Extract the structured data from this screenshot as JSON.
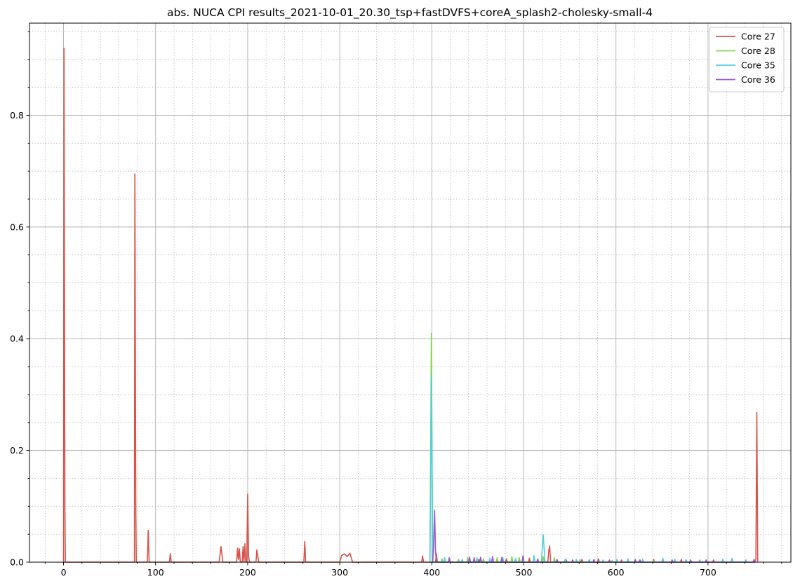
{
  "chart_data": {
    "type": "line",
    "title": "abs. NUCA CPI results_2021-10-01_20.30_tsp+fastDVFS+coreA_splash2-cholesky-small-4",
    "xlabel": "",
    "ylabel": "",
    "xlim": [
      -37,
      790
    ],
    "ylim": [
      0,
      0.965
    ],
    "x_major_ticks": [
      0,
      100,
      200,
      300,
      400,
      500,
      600,
      700
    ],
    "x_minor_step": 20,
    "y_major_ticks": [
      0.0,
      0.2,
      0.4,
      0.6,
      0.8
    ],
    "y_tick_labels": [
      "0.0",
      "0.2",
      "0.4",
      "0.6",
      "0.8"
    ],
    "y_minor_step": 0.05,
    "grid": true,
    "legend_position": "top-right",
    "series": [
      {
        "name": "Core 27",
        "color": "#d9534a",
        "points": [
          [
            0,
            0.0
          ],
          [
            0.5,
            0.92
          ],
          [
            1.5,
            0.1
          ],
          [
            2,
            0.0
          ],
          [
            77,
            0.0
          ],
          [
            77.5,
            0.695
          ],
          [
            78.5,
            0.1
          ],
          [
            79,
            0.0
          ],
          [
            91,
            0.0
          ],
          [
            92,
            0.057
          ],
          [
            93,
            0.0
          ],
          [
            115,
            0.0
          ],
          [
            116,
            0.015
          ],
          [
            117,
            0.0
          ],
          [
            169,
            0.0
          ],
          [
            171,
            0.028
          ],
          [
            173,
            0.0
          ],
          [
            188,
            0.0
          ],
          [
            189,
            0.025
          ],
          [
            190,
            0.005
          ],
          [
            191,
            0.024
          ],
          [
            192,
            0.0
          ],
          [
            194,
            0.0
          ],
          [
            195,
            0.028
          ],
          [
            196,
            0.0
          ],
          [
            197,
            0.033
          ],
          [
            198,
            0.0
          ],
          [
            199,
            0.0
          ],
          [
            200,
            0.122
          ],
          [
            201,
            0.01
          ],
          [
            202,
            0.0
          ],
          [
            209,
            0.0
          ],
          [
            210,
            0.022
          ],
          [
            212,
            0.0
          ],
          [
            261,
            0.0
          ],
          [
            262,
            0.037
          ],
          [
            263,
            0.0
          ],
          [
            300,
            0.0
          ],
          [
            302,
            0.012
          ],
          [
            305,
            0.015
          ],
          [
            308,
            0.01
          ],
          [
            311,
            0.016
          ],
          [
            314,
            0.0
          ],
          [
            389,
            0.0
          ],
          [
            390,
            0.011
          ],
          [
            391,
            0.0
          ],
          [
            404,
            0.0
          ],
          [
            405,
            0.015
          ],
          [
            406,
            0.0
          ],
          [
            418,
            0.0
          ],
          [
            419,
            0.004
          ],
          [
            420,
            0.0
          ],
          [
            450,
            0.0
          ],
          [
            451,
            0.005
          ],
          [
            452,
            0.0
          ],
          [
            480,
            0.0
          ],
          [
            481,
            0.006
          ],
          [
            482,
            0.0
          ],
          [
            505,
            0.0
          ],
          [
            506,
            0.007
          ],
          [
            507,
            0.0
          ],
          [
            526,
            0.0
          ],
          [
            527,
            0.02
          ],
          [
            528,
            0.029
          ],
          [
            529,
            0.0
          ],
          [
            545,
            0.0
          ],
          [
            546,
            0.004
          ],
          [
            547,
            0.0
          ],
          [
            562,
            0.0
          ],
          [
            563,
            0.005
          ],
          [
            564,
            0.0
          ],
          [
            580,
            0.0
          ],
          [
            581,
            0.006
          ],
          [
            582,
            0.0
          ],
          [
            605,
            0.0
          ],
          [
            606,
            0.004
          ],
          [
            607,
            0.0
          ],
          [
            640,
            0.0
          ],
          [
            641,
            0.005
          ],
          [
            642,
            0.0
          ],
          [
            670,
            0.0
          ],
          [
            671,
            0.005
          ],
          [
            672,
            0.0
          ],
          [
            705,
            0.0
          ],
          [
            706,
            0.004
          ],
          [
            707,
            0.0
          ],
          [
            751,
            0.0
          ],
          [
            752,
            0.005
          ],
          [
            753,
            0.268
          ],
          [
            754,
            0.0
          ]
        ]
      },
      {
        "name": "Core 28",
        "color": "#86d64a",
        "points": [
          [
            398,
            0.0
          ],
          [
            399.5,
            0.41
          ],
          [
            401,
            0.0
          ],
          [
            410,
            0.0
          ],
          [
            411,
            0.006
          ],
          [
            412,
            0.0
          ],
          [
            428,
            0.0
          ],
          [
            429,
            0.005
          ],
          [
            430,
            0.0
          ],
          [
            438,
            0.0
          ],
          [
            439,
            0.008
          ],
          [
            440,
            0.0
          ],
          [
            455,
            0.0
          ],
          [
            456,
            0.006
          ],
          [
            457,
            0.0
          ],
          [
            470,
            0.0
          ],
          [
            471,
            0.008
          ],
          [
            472,
            0.0
          ],
          [
            486,
            0.0
          ],
          [
            487,
            0.01
          ],
          [
            488,
            0.0
          ],
          [
            494,
            0.0
          ],
          [
            495,
            0.008
          ],
          [
            496,
            0.0
          ],
          [
            520,
            0.0
          ],
          [
            521,
            0.01
          ],
          [
            522,
            0.0
          ],
          [
            532,
            0.0
          ],
          [
            533,
            0.008
          ],
          [
            534,
            0.0
          ],
          [
            560,
            0.0
          ],
          [
            561,
            0.004
          ],
          [
            562,
            0.0
          ],
          [
            595,
            0.0
          ],
          [
            596,
            0.003
          ],
          [
            597,
            0.0
          ],
          [
            640,
            0.0
          ],
          [
            641,
            0.003
          ],
          [
            642,
            0.0
          ]
        ]
      },
      {
        "name": "Core 35",
        "color": "#4fd0dc",
        "points": [
          [
            398,
            0.0
          ],
          [
            399.5,
            0.335
          ],
          [
            401,
            0.0
          ],
          [
            413,
            0.0
          ],
          [
            414,
            0.008
          ],
          [
            415,
            0.0
          ],
          [
            432,
            0.0
          ],
          [
            433,
            0.005
          ],
          [
            434,
            0.0
          ],
          [
            448,
            0.0
          ],
          [
            449,
            0.008
          ],
          [
            450,
            0.0
          ],
          [
            462,
            0.0
          ],
          [
            463,
            0.007
          ],
          [
            464,
            0.0
          ],
          [
            476,
            0.0
          ],
          [
            477,
            0.009
          ],
          [
            478,
            0.0
          ],
          [
            490,
            0.0
          ],
          [
            491,
            0.007
          ],
          [
            492,
            0.0
          ],
          [
            510,
            0.0
          ],
          [
            511,
            0.012
          ],
          [
            512,
            0.0
          ],
          [
            519,
            0.0
          ],
          [
            521,
            0.049
          ],
          [
            523,
            0.0
          ],
          [
            544,
            0.0
          ],
          [
            545,
            0.006
          ],
          [
            546,
            0.0
          ],
          [
            556,
            0.0
          ],
          [
            557,
            0.005
          ],
          [
            558,
            0.0
          ],
          [
            570,
            0.0
          ],
          [
            571,
            0.005
          ],
          [
            572,
            0.0
          ],
          [
            585,
            0.0
          ],
          [
            586,
            0.004
          ],
          [
            587,
            0.0
          ],
          [
            600,
            0.0
          ],
          [
            601,
            0.005
          ],
          [
            602,
            0.0
          ],
          [
            612,
            0.0
          ],
          [
            613,
            0.006
          ],
          [
            614,
            0.0
          ],
          [
            628,
            0.0
          ],
          [
            629,
            0.005
          ],
          [
            630,
            0.0
          ],
          [
            650,
            0.0
          ],
          [
            651,
            0.007
          ],
          [
            652,
            0.0
          ],
          [
            663,
            0.0
          ],
          [
            664,
            0.005
          ],
          [
            665,
            0.0
          ],
          [
            675,
            0.0
          ],
          [
            676,
            0.005
          ],
          [
            677,
            0.0
          ],
          [
            690,
            0.0
          ],
          [
            691,
            0.004
          ],
          [
            692,
            0.0
          ],
          [
            715,
            0.0
          ],
          [
            716,
            0.005
          ],
          [
            717,
            0.0
          ],
          [
            725,
            0.0
          ],
          [
            726,
            0.007
          ],
          [
            727,
            0.0
          ],
          [
            740,
            0.0
          ],
          [
            741,
            0.004
          ],
          [
            742,
            0.0
          ]
        ]
      },
      {
        "name": "Core 36",
        "color": "#9b55d6",
        "points": [
          [
            401,
            0.0
          ],
          [
            402,
            0.03
          ],
          [
            403,
            0.093
          ],
          [
            404,
            0.02
          ],
          [
            405,
            0.0
          ],
          [
            418,
            0.0
          ],
          [
            419,
            0.008
          ],
          [
            420,
            0.0
          ],
          [
            440,
            0.0
          ],
          [
            441,
            0.009
          ],
          [
            442,
            0.0
          ],
          [
            445,
            0.0
          ],
          [
            446,
            0.008
          ],
          [
            447,
            0.0
          ],
          [
            452,
            0.0
          ],
          [
            453,
            0.009
          ],
          [
            454,
            0.0
          ],
          [
            465,
            0.0
          ],
          [
            466,
            0.01
          ],
          [
            467,
            0.0
          ],
          [
            475,
            0.0
          ],
          [
            476,
            0.008
          ],
          [
            477,
            0.0
          ],
          [
            498,
            0.0
          ],
          [
            499,
            0.011
          ],
          [
            500,
            0.0
          ],
          [
            514,
            0.0
          ],
          [
            515,
            0.006
          ],
          [
            516,
            0.0
          ],
          [
            535,
            0.0
          ],
          [
            536,
            0.005
          ],
          [
            537,
            0.0
          ],
          [
            552,
            0.0
          ],
          [
            553,
            0.004
          ],
          [
            554,
            0.0
          ],
          [
            575,
            0.0
          ],
          [
            576,
            0.005
          ],
          [
            577,
            0.0
          ],
          [
            592,
            0.0
          ],
          [
            593,
            0.004
          ],
          [
            594,
            0.0
          ],
          [
            620,
            0.0
          ],
          [
            621,
            0.005
          ],
          [
            622,
            0.0
          ],
          [
            625,
            0.0
          ],
          [
            626,
            0.004
          ],
          [
            627,
            0.0
          ],
          [
            660,
            0.0
          ],
          [
            661,
            0.004
          ],
          [
            662,
            0.0
          ],
          [
            680,
            0.0
          ],
          [
            681,
            0.004
          ],
          [
            682,
            0.0
          ],
          [
            697,
            0.0
          ],
          [
            698,
            0.004
          ],
          [
            699,
            0.0
          ],
          [
            749,
            0.0
          ],
          [
            750,
            0.005
          ],
          [
            751,
            0.0
          ]
        ]
      }
    ]
  }
}
